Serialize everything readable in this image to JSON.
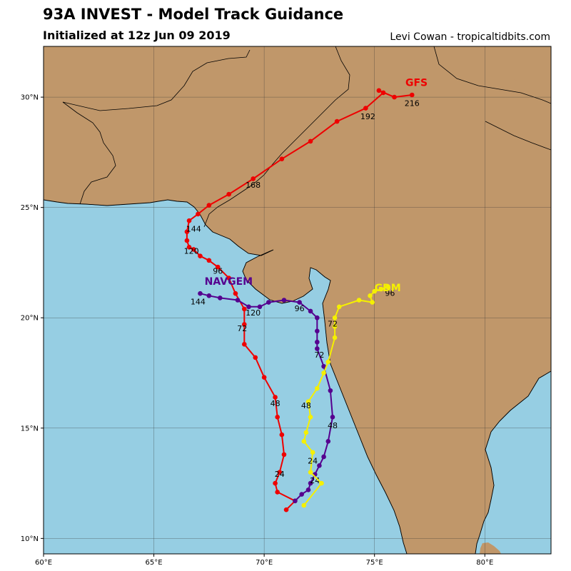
{
  "header": {
    "title": "93A INVEST - Model Track Guidance",
    "subtitle": "Initialized at 12z Jun 09 2019",
    "credit": "Levi Cowan - tropicaltidbits.com"
  },
  "colors": {
    "ocean": "#96cee3",
    "land": "#c0976a",
    "coast": "#000000",
    "grid": "#333333",
    "gfs": "#ee0000",
    "navgem": "#55008f",
    "gdm": "#f5f000"
  },
  "map": {
    "lon_range": [
      60,
      83
    ],
    "lat_range": [
      9.3,
      32.3
    ],
    "x_ticks": [
      {
        "value": 60,
        "label": "60°E"
      },
      {
        "value": 65,
        "label": "65°E"
      },
      {
        "value": 70,
        "label": "70°E"
      },
      {
        "value": 75,
        "label": "75°E"
      },
      {
        "value": 80,
        "label": "80°E"
      }
    ],
    "y_ticks": [
      {
        "value": 10,
        "label": "10°N"
      },
      {
        "value": 15,
        "label": "15°N"
      },
      {
        "value": 20,
        "label": "20°N"
      },
      {
        "value": 25,
        "label": "25°N"
      },
      {
        "value": 30,
        "label": "30°N"
      }
    ],
    "grid": true
  },
  "tracks": [
    {
      "name": "GFS",
      "color": "#ee0000",
      "name_at": [
        76.4,
        30.5
      ],
      "points": [
        [
          71.0,
          11.3
        ],
        [
          71.4,
          11.7
        ],
        [
          70.6,
          12.1
        ],
        [
          70.5,
          12.5
        ],
        [
          70.7,
          13.0
        ],
        [
          70.9,
          13.8
        ],
        [
          70.8,
          14.7
        ],
        [
          70.6,
          15.5
        ],
        [
          70.5,
          16.4
        ],
        [
          70.0,
          17.3
        ],
        [
          69.6,
          18.2
        ],
        [
          69.1,
          18.8
        ],
        [
          69.1,
          19.7
        ],
        [
          69.1,
          20.4
        ],
        [
          68.7,
          21.1
        ],
        [
          68.4,
          21.8
        ],
        [
          67.9,
          22.3
        ],
        [
          67.5,
          22.6
        ],
        [
          67.1,
          22.8
        ],
        [
          66.8,
          23.1
        ],
        [
          66.6,
          23.2
        ],
        [
          66.5,
          23.5
        ],
        [
          66.5,
          23.9
        ],
        [
          66.6,
          24.4
        ],
        [
          67.0,
          24.7
        ],
        [
          67.5,
          25.1
        ],
        [
          68.4,
          25.6
        ],
        [
          69.5,
          26.3
        ],
        [
          70.8,
          27.2
        ],
        [
          72.1,
          28.0
        ],
        [
          73.3,
          28.9
        ],
        [
          74.6,
          29.5
        ],
        [
          75.4,
          30.2
        ],
        [
          75.2,
          30.3
        ],
        [
          75.9,
          30.0
        ],
        [
          76.7,
          30.1
        ]
      ],
      "labels": [
        {
          "text": "24",
          "at": [
            70.7,
            12.8
          ]
        },
        {
          "text": "48",
          "at": [
            70.5,
            16.0
          ]
        },
        {
          "text": "72",
          "at": [
            69.0,
            19.4
          ]
        },
        {
          "text": "96",
          "at": [
            67.9,
            22.0
          ]
        },
        {
          "text": "120",
          "at": [
            66.7,
            22.9
          ]
        },
        {
          "text": "144",
          "at": [
            66.8,
            23.9
          ]
        },
        {
          "text": "168",
          "at": [
            69.5,
            25.9
          ]
        },
        {
          "text": "192",
          "at": [
            74.7,
            29.0
          ]
        },
        {
          "text": "216",
          "at": [
            76.7,
            29.6
          ]
        }
      ]
    },
    {
      "name": "NAVGEM",
      "color": "#55008f",
      "name_at": [
        67.3,
        21.5
      ],
      "points": [
        [
          71.4,
          11.7
        ],
        [
          71.7,
          12.0
        ],
        [
          72.0,
          12.2
        ],
        [
          72.1,
          12.5
        ],
        [
          72.3,
          12.9
        ],
        [
          72.5,
          13.3
        ],
        [
          72.7,
          13.7
        ],
        [
          72.9,
          14.4
        ],
        [
          73.1,
          15.5
        ],
        [
          73.0,
          16.7
        ],
        [
          72.7,
          17.8
        ],
        [
          72.4,
          18.6
        ],
        [
          72.4,
          18.9
        ],
        [
          72.4,
          19.4
        ],
        [
          72.4,
          20.0
        ],
        [
          72.1,
          20.3
        ],
        [
          71.6,
          20.7
        ],
        [
          70.9,
          20.8
        ],
        [
          70.2,
          20.7
        ],
        [
          69.8,
          20.5
        ],
        [
          69.3,
          20.5
        ],
        [
          68.8,
          20.8
        ],
        [
          68.0,
          20.9
        ],
        [
          67.5,
          21.0
        ],
        [
          67.1,
          21.1
        ]
      ],
      "labels": [
        {
          "text": "24",
          "at": [
            72.3,
            12.5
          ]
        },
        {
          "text": "48",
          "at": [
            73.1,
            15.0
          ]
        },
        {
          "text": "72",
          "at": [
            72.5,
            18.2
          ]
        },
        {
          "text": "96",
          "at": [
            71.6,
            20.3
          ]
        },
        {
          "text": "120",
          "at": [
            69.5,
            20.1
          ]
        },
        {
          "text": "144",
          "at": [
            67.0,
            20.6
          ]
        }
      ]
    },
    {
      "name": "GDM",
      "color": "#f5f000",
      "name_at": [
        75.0,
        21.2
      ],
      "points": [
        [
          71.8,
          11.5
        ],
        [
          72.6,
          12.5
        ],
        [
          72.1,
          13.0
        ],
        [
          72.2,
          13.9
        ],
        [
          71.8,
          14.4
        ],
        [
          71.9,
          14.8
        ],
        [
          72.1,
          15.5
        ],
        [
          72.0,
          16.2
        ],
        [
          72.4,
          16.8
        ],
        [
          72.7,
          17.5
        ],
        [
          72.9,
          18.0
        ],
        [
          73.2,
          19.1
        ],
        [
          73.2,
          19.6
        ],
        [
          73.2,
          20.0
        ],
        [
          73.4,
          20.5
        ],
        [
          74.3,
          20.8
        ],
        [
          74.9,
          20.7
        ],
        [
          74.8,
          21.0
        ],
        [
          75.0,
          21.2
        ],
        [
          75.3,
          21.3
        ],
        [
          75.6,
          21.4
        ]
      ],
      "labels": [
        {
          "text": "24",
          "at": [
            72.2,
            13.4
          ]
        },
        {
          "text": "48",
          "at": [
            71.9,
            15.9
          ]
        },
        {
          "text": "72",
          "at": [
            73.1,
            19.6
          ]
        },
        {
          "text": "96",
          "at": [
            75.7,
            21.0
          ]
        }
      ]
    }
  ]
}
